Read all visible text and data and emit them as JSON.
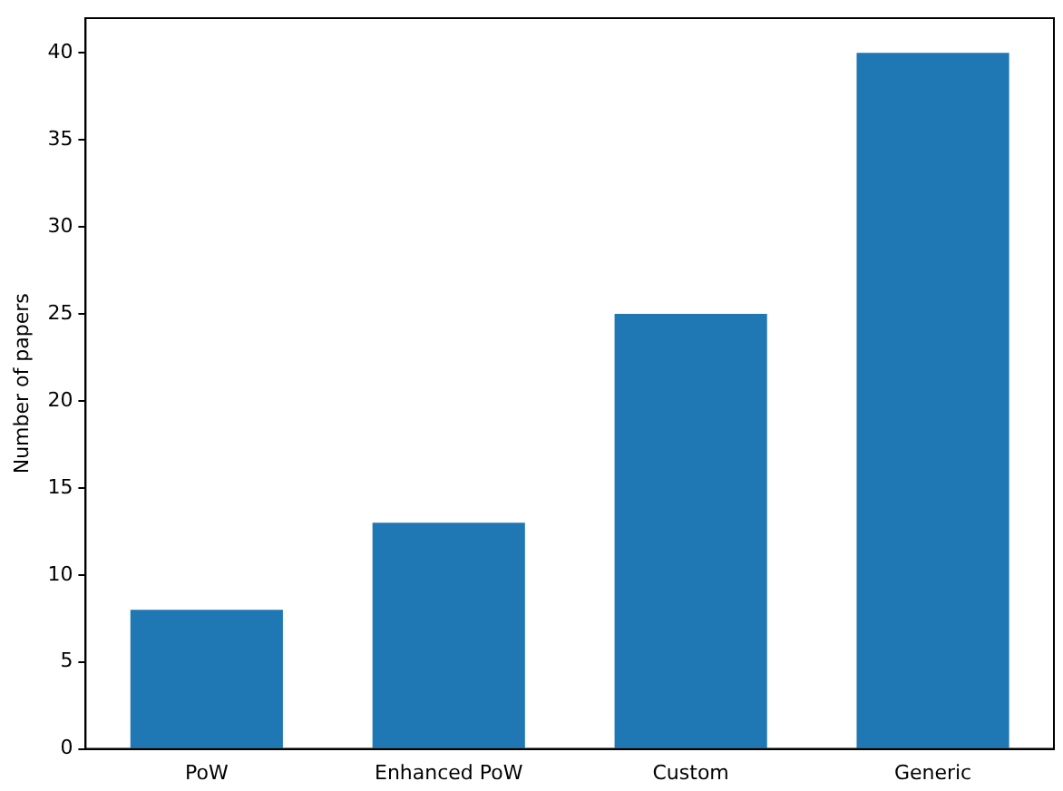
{
  "chart_data": {
    "type": "bar",
    "ylabel": "Number of papers",
    "categories": [
      "PoW",
      "Enhanced PoW",
      "Custom",
      "Generic"
    ],
    "values": [
      8,
      13,
      25,
      40
    ],
    "color": "#1f77b4",
    "ylim": [
      0,
      42
    ],
    "yticks": [
      0,
      5,
      10,
      15,
      20,
      25,
      30,
      35,
      40
    ],
    "grid": false,
    "legend": false
  }
}
